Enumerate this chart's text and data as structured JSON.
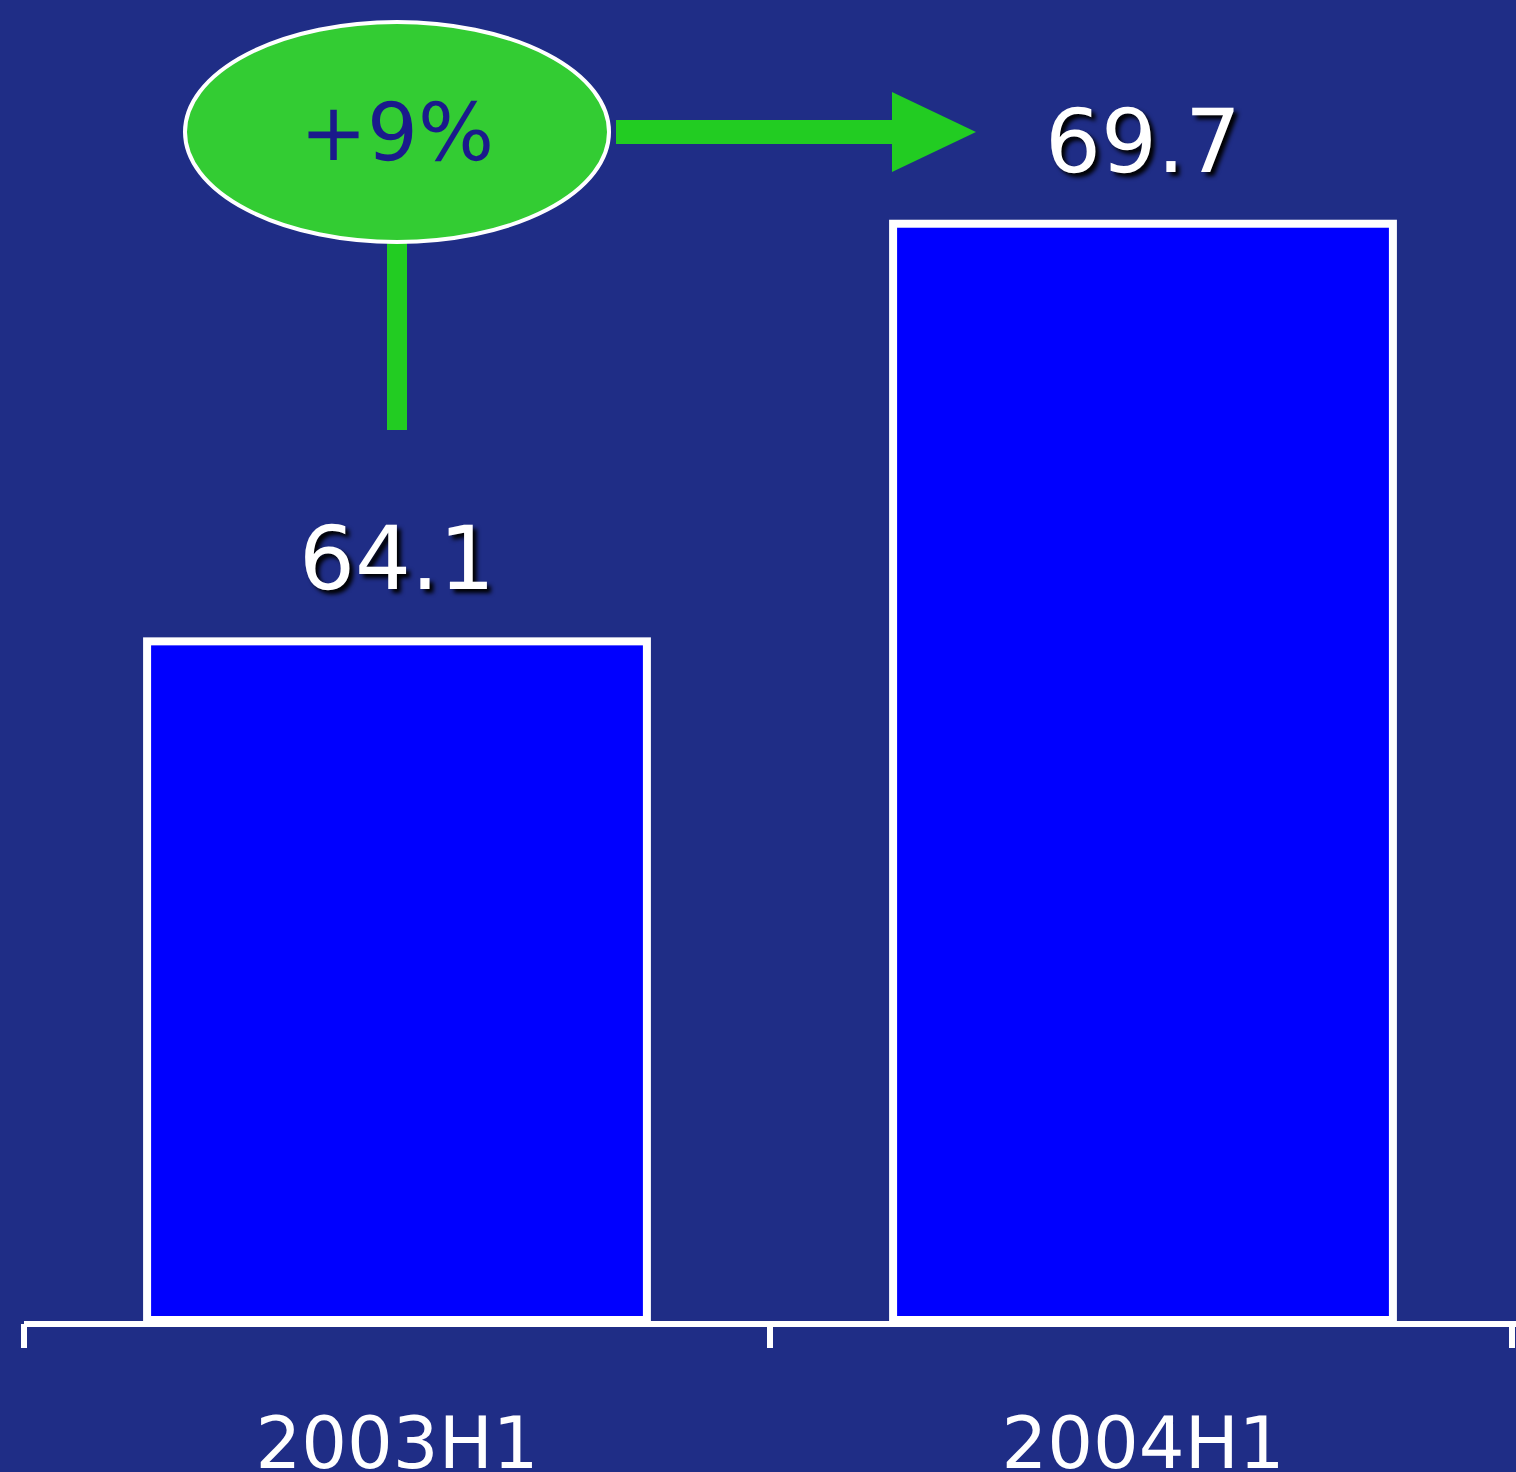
{
  "chart_data": {
    "type": "bar",
    "categories": [
      "2003H1",
      "2004H1"
    ],
    "values": [
      64.1,
      69.7
    ],
    "color": "#0000ff",
    "ylim": [
      55,
      72.7
    ],
    "data_labels": true,
    "annotations": [
      "+9%"
    ],
    "tick_labels": "x"
  }
}
